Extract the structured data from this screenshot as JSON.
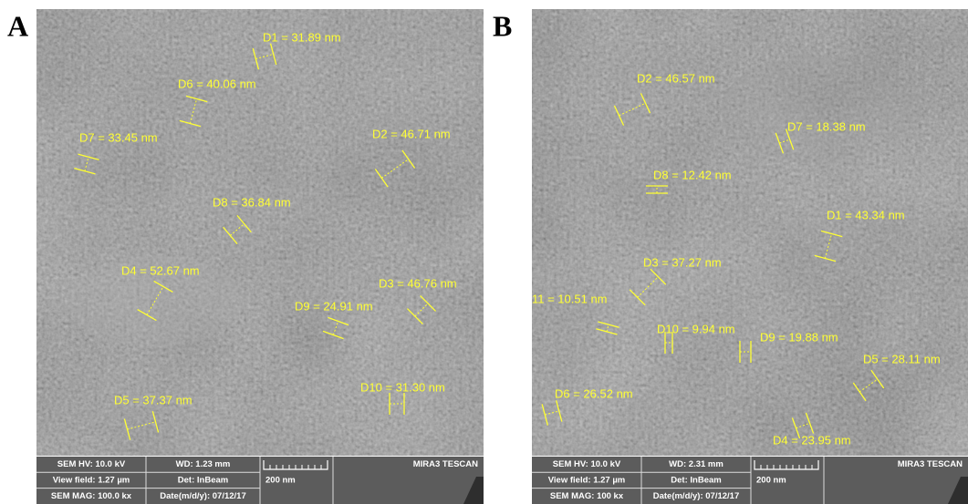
{
  "panels": [
    {
      "label": "A",
      "measurements": [
        "D1 = 31.89 nm",
        "D6 = 40.06 nm",
        "D7 = 33.45 nm",
        "D2 = 46.71 nm",
        "D8 = 36.84 nm",
        "D4 = 52.67 nm",
        "D3 = 46.76 nm",
        "D9 = 24.91 nm",
        "D10 = 31.30 nm",
        "D5 = 37.37 nm"
      ],
      "info": {
        "hv": "SEM HV: 10.0 kV",
        "wd": "WD: 1.23 mm",
        "brand": "MIRA3 TESCAN",
        "view_field": "View field: 1.27 µm",
        "detector": "Det: InBeam",
        "scale": "200 nm",
        "mag": "SEM MAG: 100.0 kx",
        "date": "Date(m/d/y): 07/12/17"
      }
    },
    {
      "label": "B",
      "measurements": [
        "D2 = 46.57 nm",
        "D7 = 18.38 nm",
        "D8 = 12.42 nm",
        "D1 = 43.34 nm",
        "D3 = 37.27 nm",
        "11 = 10.51 nm",
        "D10 = 9.94 nm",
        "D9 = 19.88 nm",
        "D5 = 28.11 nm",
        "D6 = 26.52 nm",
        "D4 = 23.95 nm"
      ],
      "info": {
        "hv": "SEM HV: 10.0 kV",
        "wd": "WD: 2.31 mm",
        "brand": "MIRA3 TESCAN",
        "view_field": "View field: 1.27 µm",
        "detector": "Det: InBeam",
        "scale": "200 nm",
        "mag": "SEM MAG: 100 kx",
        "date": "Date(m/d/y): 07/12/17"
      }
    }
  ]
}
